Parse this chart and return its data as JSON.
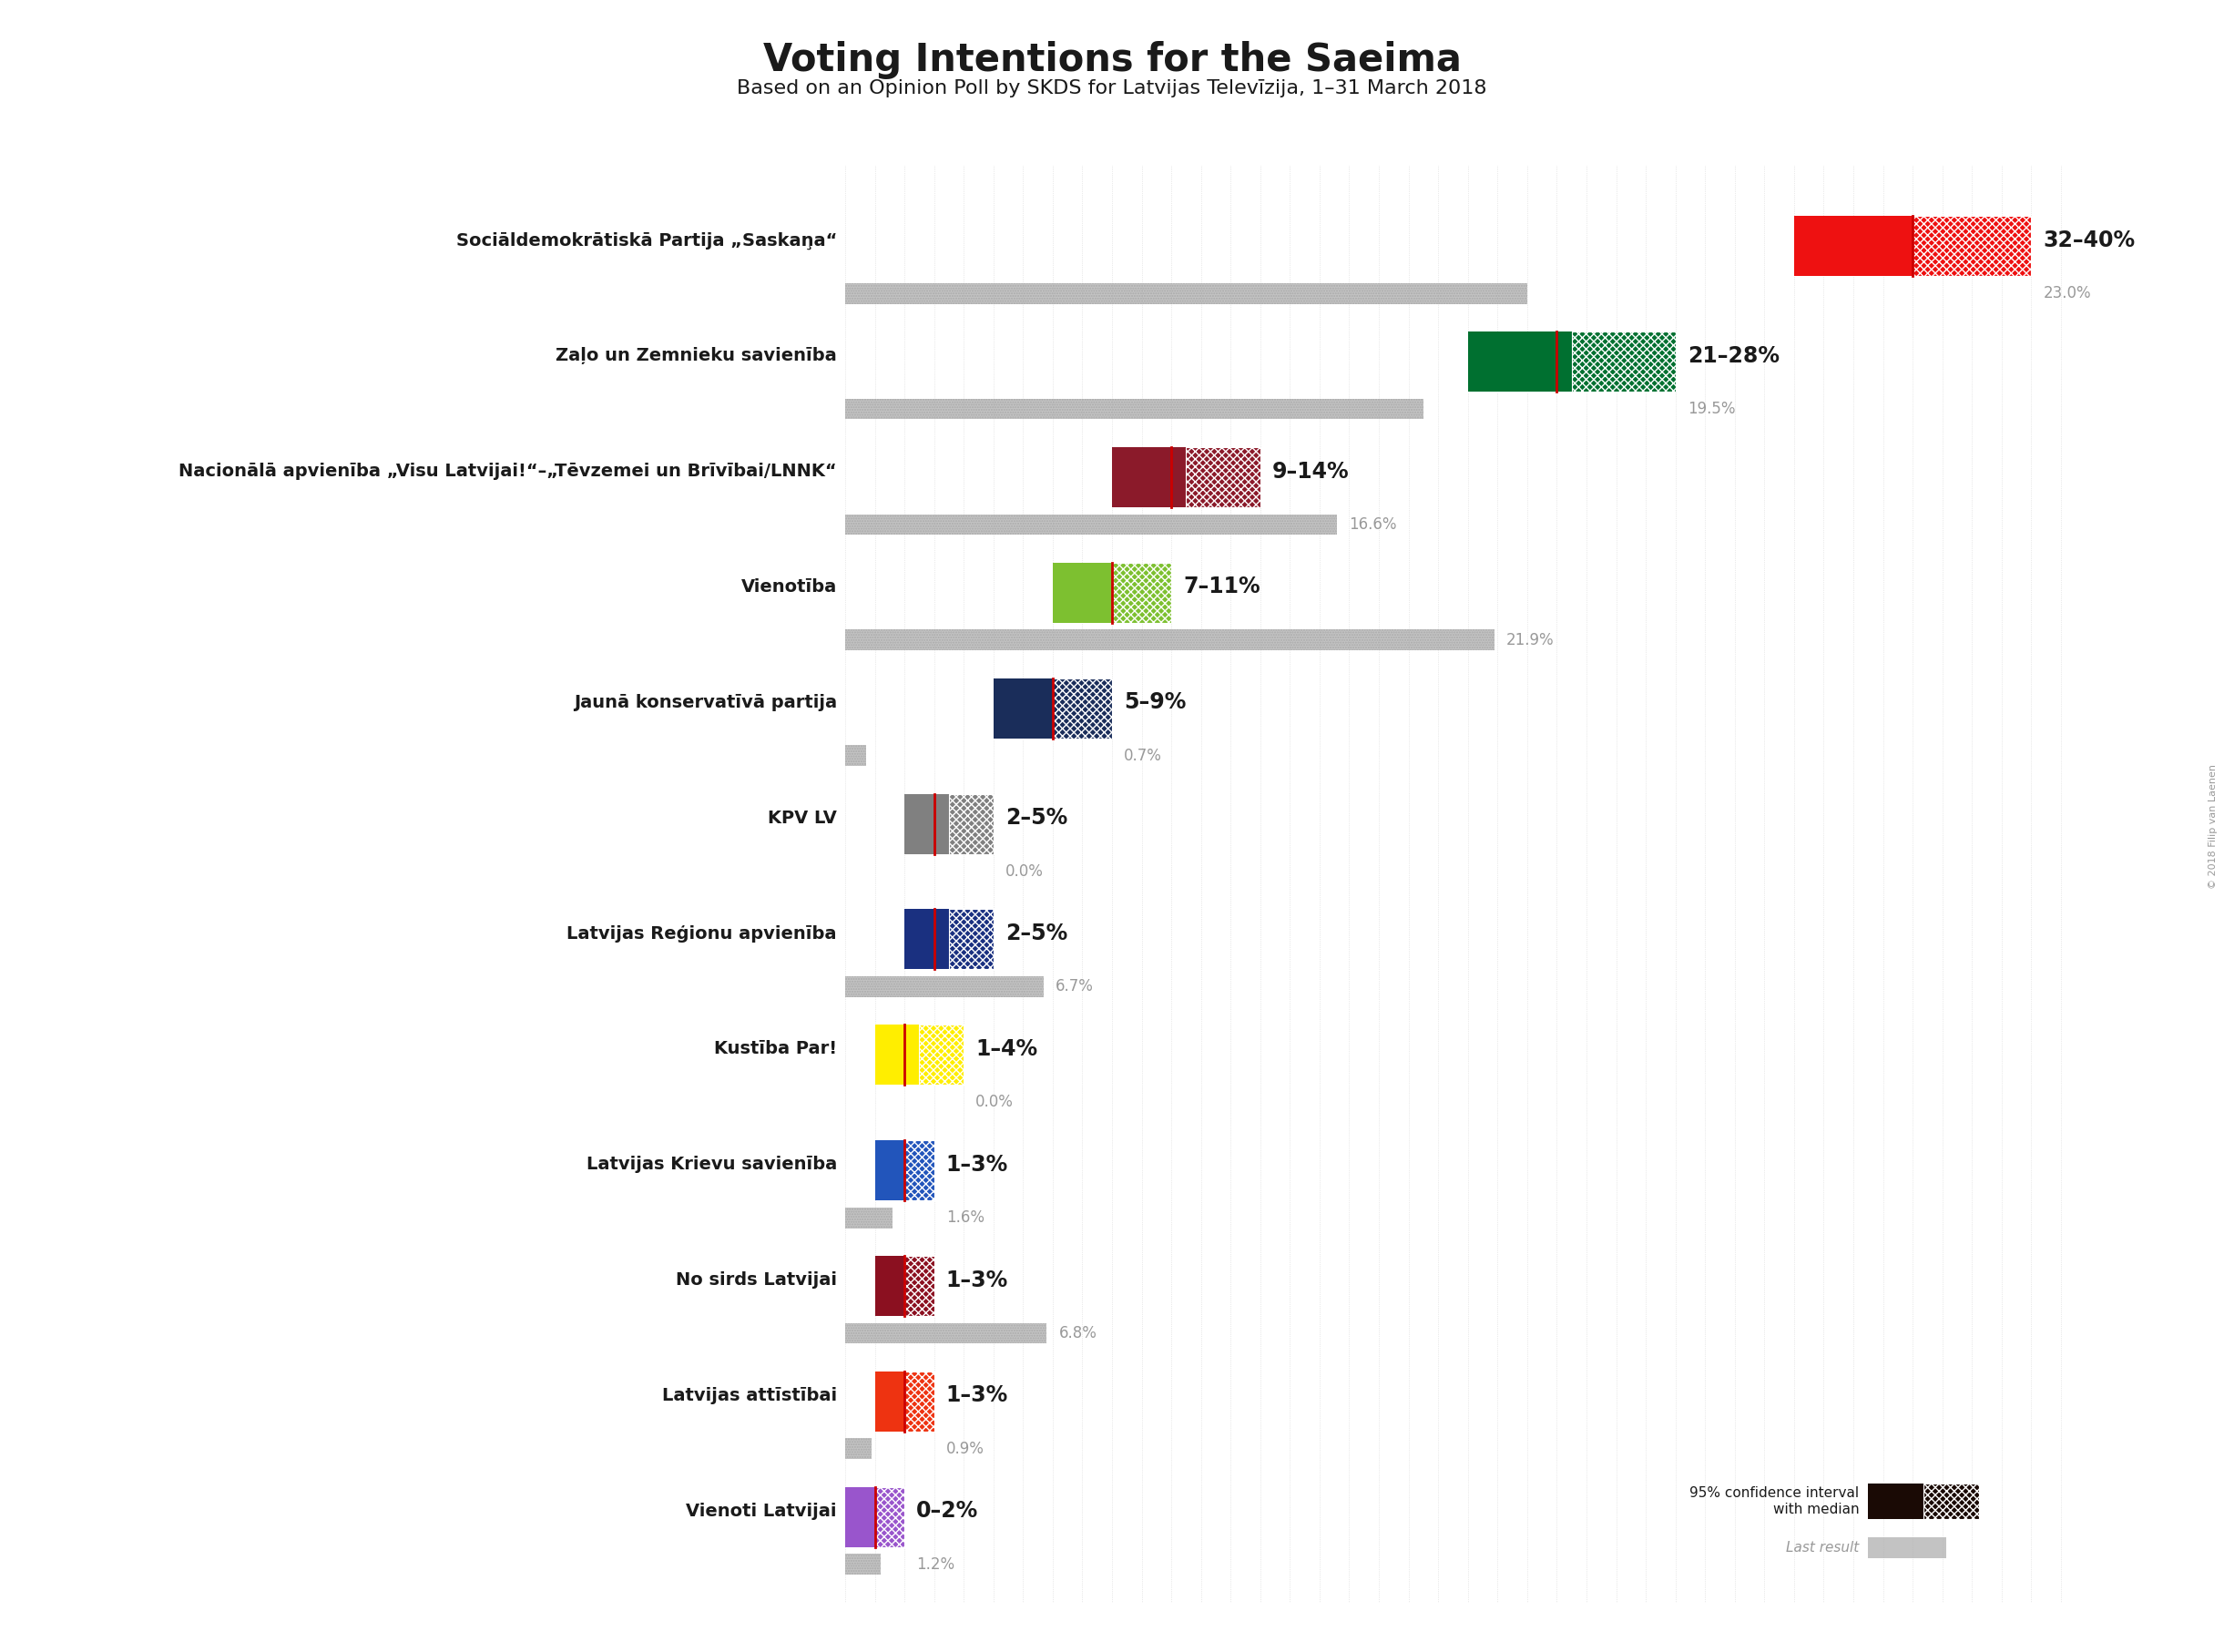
{
  "title": "Voting Intentions for the Saeima",
  "subtitle": "Based on an Opinion Poll by SKDS for Latvijas Televīzija, 1–31 March 2018",
  "copyright": "© 2018 Filip van Laenen",
  "parties": [
    {
      "name": "Sociāldemokrātiskā Partija „Saskaņa“",
      "low": 32,
      "high": 40,
      "median": 36,
      "last_result": 23.0,
      "color": "#EE1111",
      "label": "32–40%",
      "last_label": "23.0%"
    },
    {
      "name": "Zaļo un Zemnieku savienība",
      "low": 21,
      "high": 28,
      "median": 24,
      "last_result": 19.5,
      "color": "#007030",
      "label": "21–28%",
      "last_label": "19.5%"
    },
    {
      "name": "Nacionālā apvienība „Visu Latvijai!“–„Tēvzemei un Brīvībai/LNNK“",
      "low": 9,
      "high": 14,
      "median": 11,
      "last_result": 16.6,
      "color": "#8B1A2A",
      "label": "9–14%",
      "last_label": "16.6%"
    },
    {
      "name": "Vienotība",
      "low": 7,
      "high": 11,
      "median": 9,
      "last_result": 21.9,
      "color": "#7DC030",
      "label": "7–11%",
      "last_label": "21.9%"
    },
    {
      "name": "Jaunā konservatīvā partija",
      "low": 5,
      "high": 9,
      "median": 7,
      "last_result": 0.7,
      "color": "#1A2D5A",
      "label": "5–9%",
      "last_label": "0.7%"
    },
    {
      "name": "KPV LV",
      "low": 2,
      "high": 5,
      "median": 3,
      "last_result": 0.0,
      "color": "#808080",
      "label": "2–5%",
      "last_label": "0.0%"
    },
    {
      "name": "Latvijas Reģionu apvienība",
      "low": 2,
      "high": 5,
      "median": 3,
      "last_result": 6.7,
      "color": "#1A3080",
      "label": "2–5%",
      "last_label": "6.7%"
    },
    {
      "name": "Kustība Par!",
      "low": 1,
      "high": 4,
      "median": 2,
      "last_result": 0.0,
      "color": "#FFEE00",
      "label": "1–4%",
      "last_label": "0.0%"
    },
    {
      "name": "Latvijas Krievu savienība",
      "low": 1,
      "high": 3,
      "median": 2,
      "last_result": 1.6,
      "color": "#2255BB",
      "label": "1–3%",
      "last_label": "1.6%"
    },
    {
      "name": "No sirds Latvijai",
      "low": 1,
      "high": 3,
      "median": 2,
      "last_result": 6.8,
      "color": "#8B1020",
      "label": "1–3%",
      "last_label": "6.8%"
    },
    {
      "name": "Latvijas attīstībai",
      "low": 1,
      "high": 3,
      "median": 2,
      "last_result": 0.9,
      "color": "#EE3311",
      "label": "1–3%",
      "last_label": "0.9%"
    },
    {
      "name": "Vienoti Latvijai",
      "low": 0,
      "high": 2,
      "median": 1,
      "last_result": 1.2,
      "color": "#9955CC",
      "label": "0–2%",
      "last_label": "1.2%"
    }
  ],
  "x_max": 42,
  "background_color": "#FFFFFF",
  "grid_color": "#CCCCCC",
  "label_color": "#1a1a1a",
  "last_label_color": "#999999",
  "median_color": "#CC0000",
  "last_bar_color": "#AAAAAA"
}
